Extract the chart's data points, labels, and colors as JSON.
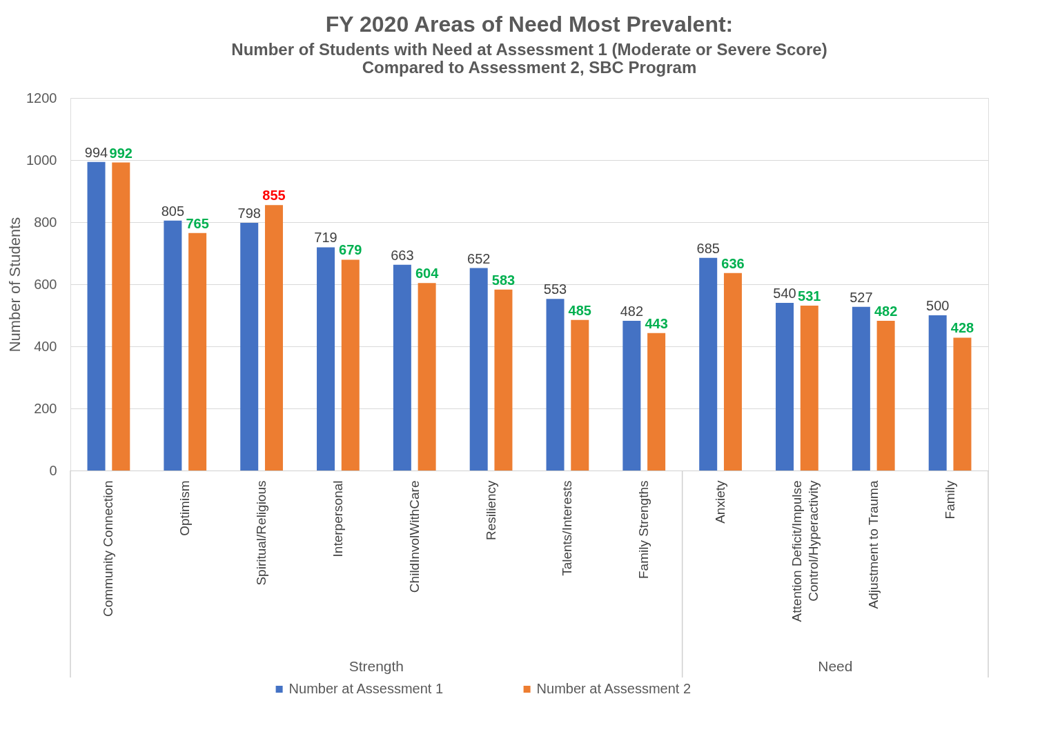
{
  "chart_data": {
    "type": "bar",
    "title": "FY 2020 Areas of Need Most Prevalent:",
    "subtitle": "Number of Students with Need at Assessment 1 (Moderate or Severe Score)\nCompared to Assessment 2, SBC Program",
    "ylabel": "Number of Students",
    "categories": [
      "Community Connection",
      "Optimism",
      "Spiritual/Religious",
      "Interpersonal",
      "ChildInvolWithCare",
      "Resiliency",
      "Talents/Interests",
      "Family Strengths",
      "Anxiety",
      "Attention Deficit/Impulse Control/Hyperactivity",
      "Adjustment to Trauma",
      "Family"
    ],
    "series": [
      {
        "name": "Number at Assessment 1",
        "color": "#4472c4",
        "values": [
          994,
          805,
          798,
          719,
          663,
          652,
          553,
          482,
          685,
          540,
          527,
          500
        ]
      },
      {
        "name": "Number at Assessment 2",
        "color": "#ed7d31",
        "values": [
          992,
          765,
          855,
          679,
          604,
          583,
          485,
          443,
          636,
          531,
          482,
          428
        ]
      }
    ],
    "annotations": [
      "Strength",
      "Need"
    ],
    "ylim": [
      0,
      1200
    ],
    "yticks": [
      0,
      200,
      400,
      600,
      800,
      1000,
      1200
    ],
    "grid": "y",
    "legend": "bottom",
    "data_labels": true
  }
}
